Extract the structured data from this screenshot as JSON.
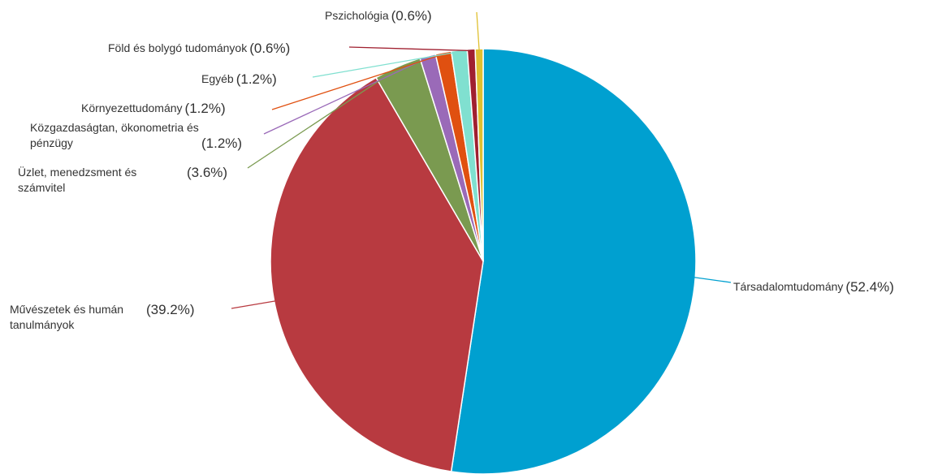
{
  "chart_data": {
    "type": "pie",
    "categories": [
      "Társadalomtudomány",
      "Művészetek és humán tanulmányok",
      "Üzlet, menedzsment és számvitel",
      "Közgazdaságtan, ökonometria és pénzügy",
      "Környezettudomány",
      "Egyéb",
      "Föld és bolygó tudományok",
      "Pszichológia"
    ],
    "values": [
      52.4,
      39.2,
      3.6,
      1.2,
      1.2,
      1.2,
      0.6,
      0.6
    ],
    "value_labels": [
      "(52.4%)",
      "(39.2%)",
      "(3.6%)",
      "(1.2%)",
      "(1.2%)",
      "(1.2%)",
      "(0.6%)",
      "(0.6%)"
    ],
    "colors": [
      "#00a0d0",
      "#b83a40",
      "#7a9a50",
      "#9a6ab8",
      "#e05010",
      "#80e0d0",
      "#a02030",
      "#e0c030"
    ]
  }
}
